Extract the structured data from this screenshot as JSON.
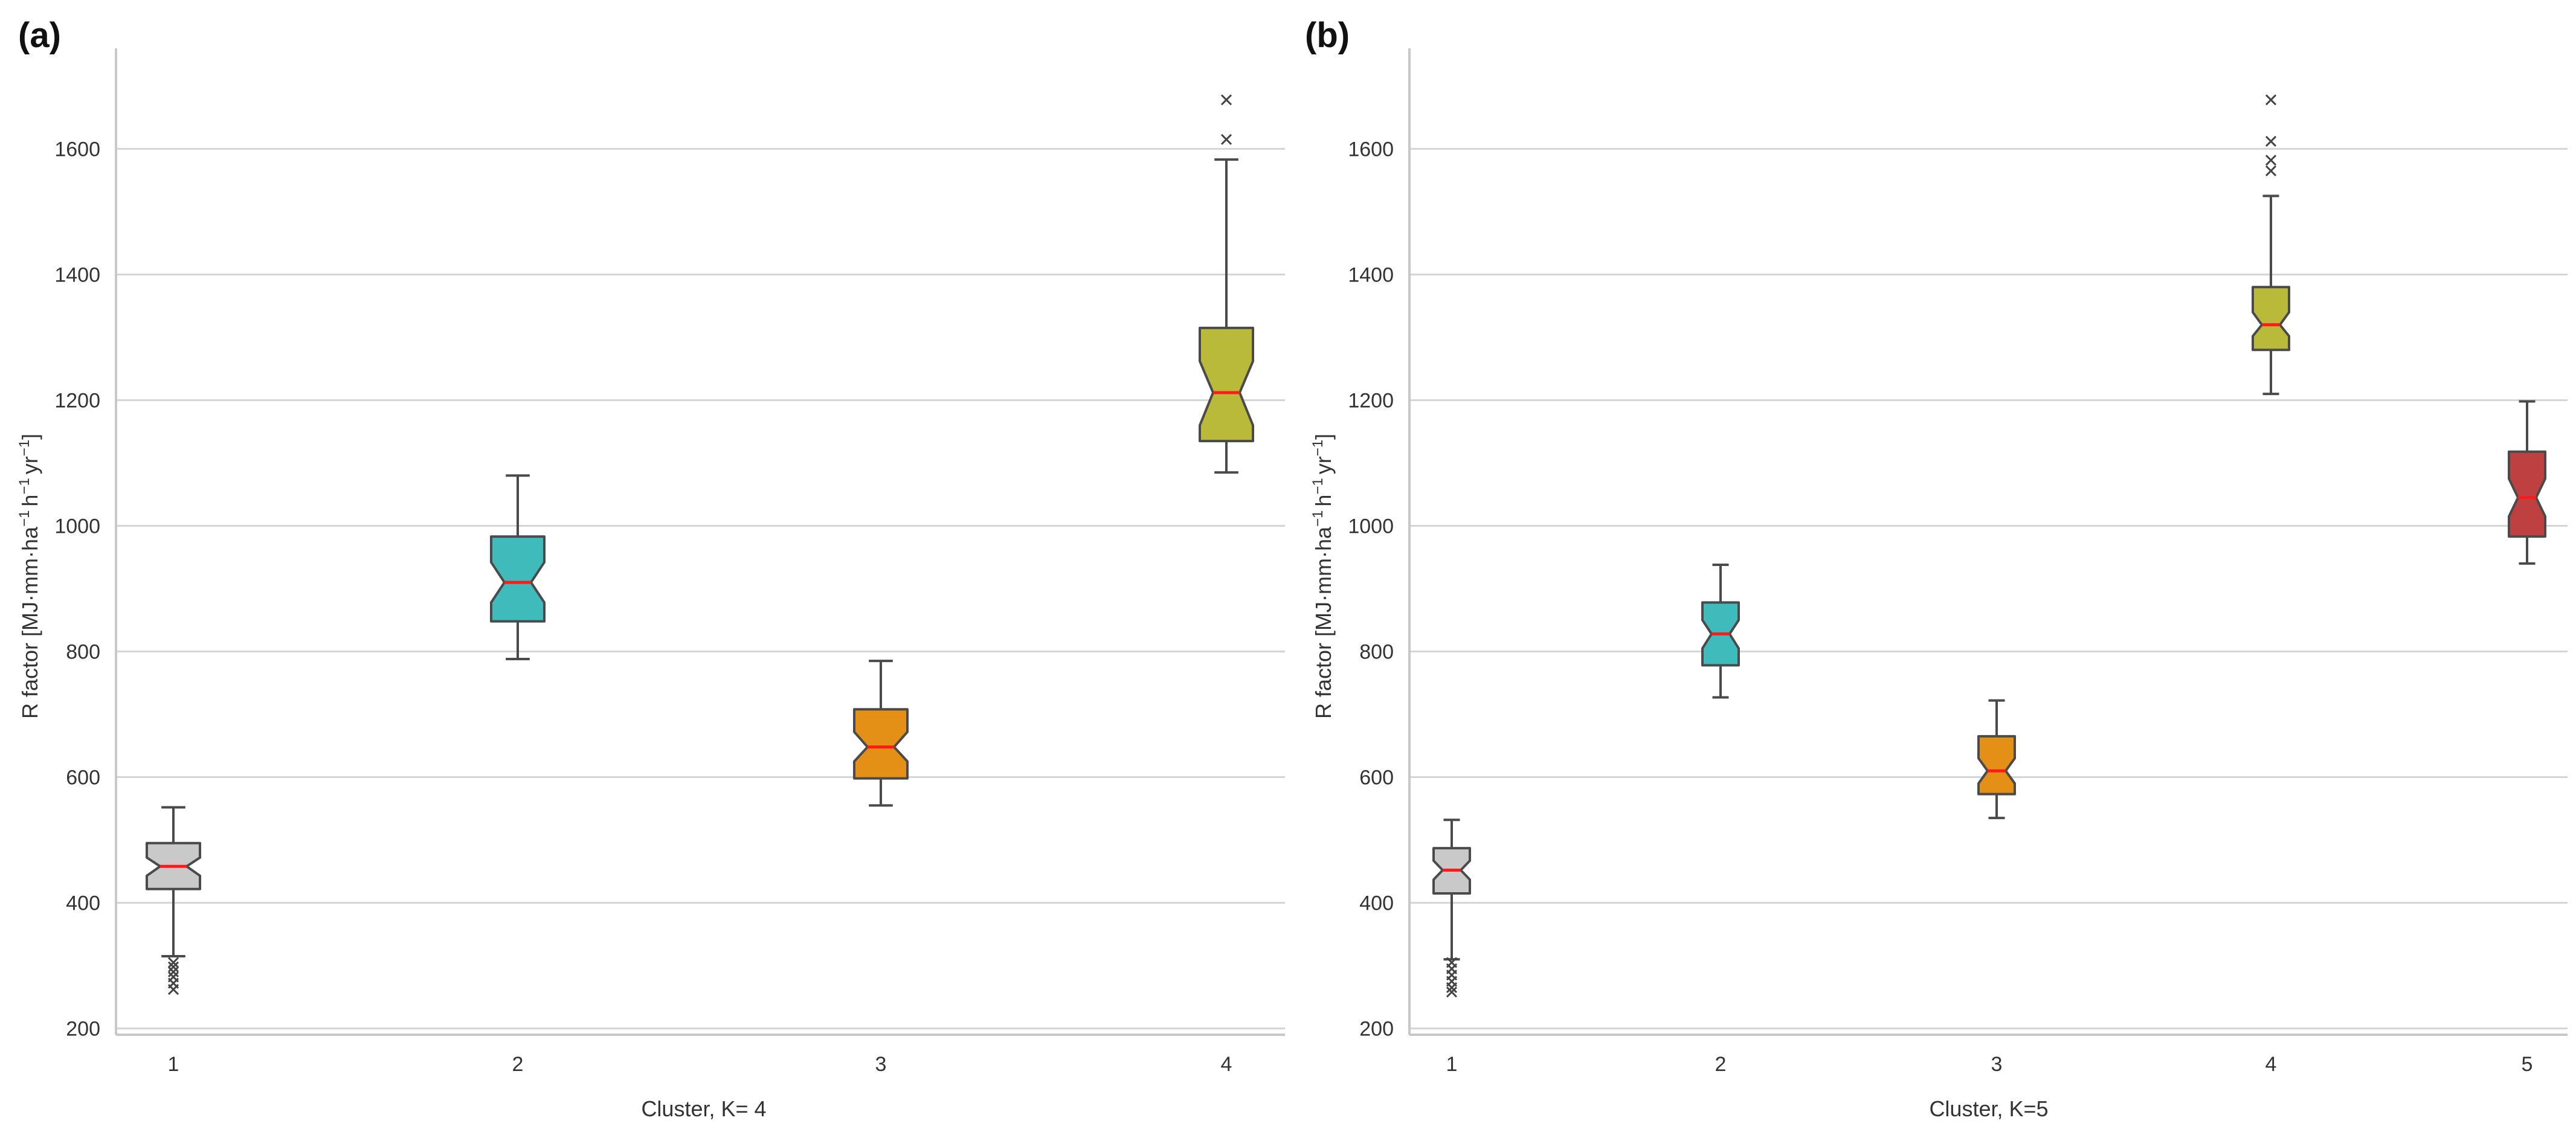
{
  "chart_data": [
    {
      "type": "box",
      "panel_label": "(a)",
      "title": "",
      "xlabel": "Cluster, K= 4",
      "ylabel_text": "R factor [MJ·mm·ha",
      "ylabel_sup": [
        "−1",
        "h",
        "−1",
        "yr",
        "−1",
        "]"
      ],
      "ylim": [
        190,
        1760
      ],
      "yticks": [
        200,
        400,
        600,
        800,
        1000,
        1200,
        1400,
        1600
      ],
      "categories": [
        "1",
        "2",
        "3",
        "4"
      ],
      "boxes": [
        {
          "cluster": "1",
          "color": "#c9c9c9",
          "whislo": 315,
          "q1": 422,
          "med": 458,
          "q3": 495,
          "whishi": 552,
          "notch_lo": 443,
          "notch_hi": 472,
          "fliers": [
            305,
            298,
            290,
            282,
            272,
            262
          ]
        },
        {
          "cluster": "2",
          "color": "#3fbbbb",
          "whislo": 788,
          "q1": 848,
          "med": 910,
          "q3": 983,
          "whishi": 1080,
          "notch_lo": 878,
          "notch_hi": 942,
          "fliers": []
        },
        {
          "cluster": "3",
          "color": "#e48f16",
          "whislo": 555,
          "q1": 598,
          "med": 648,
          "q3": 708,
          "whishi": 785,
          "notch_lo": 625,
          "notch_hi": 672,
          "fliers": []
        },
        {
          "cluster": "4",
          "color": "#b9b93a",
          "whislo": 1085,
          "q1": 1135,
          "med": 1212,
          "q3": 1315,
          "whishi": 1583,
          "notch_lo": 1160,
          "notch_hi": 1262,
          "fliers": [
            1615,
            1678
          ]
        }
      ]
    },
    {
      "type": "box",
      "panel_label": "(b)",
      "title": "",
      "xlabel": "Cluster, K=5",
      "ylabel_text": "R factor [MJ·mm·ha",
      "ylabel_sup": [
        "−1",
        "h",
        "−1",
        "yr",
        "−1",
        "]"
      ],
      "ylim": [
        190,
        1760
      ],
      "yticks": [
        200,
        400,
        600,
        800,
        1000,
        1200,
        1400,
        1600
      ],
      "categories": [
        "1",
        "2",
        "3",
        "4",
        "5"
      ],
      "boxes": [
        {
          "cluster": "1",
          "color": "#c9c9c9",
          "whislo": 310,
          "q1": 415,
          "med": 452,
          "q3": 487,
          "whishi": 532,
          "notch_lo": 437,
          "notch_hi": 467,
          "fliers": [
            305,
            295,
            285,
            275,
            265,
            258
          ]
        },
        {
          "cluster": "2",
          "color": "#3fbbbb",
          "whislo": 727,
          "q1": 778,
          "med": 828,
          "q3": 878,
          "whishi": 938,
          "notch_lo": 805,
          "notch_hi": 850,
          "fliers": []
        },
        {
          "cluster": "3",
          "color": "#e48f16",
          "whislo": 535,
          "q1": 573,
          "med": 610,
          "q3": 665,
          "whishi": 722,
          "notch_lo": 590,
          "notch_hi": 630,
          "fliers": []
        },
        {
          "cluster": "4",
          "color": "#b9b93a",
          "whislo": 1210,
          "q1": 1280,
          "med": 1320,
          "q3": 1380,
          "whishi": 1525,
          "notch_lo": 1302,
          "notch_hi": 1340,
          "fliers": [
            1565,
            1582,
            1612,
            1678
          ]
        },
        {
          "cluster": "5",
          "color": "#bf4040",
          "whislo": 940,
          "q1": 983,
          "med": 1045,
          "q3": 1118,
          "whishi": 1198,
          "notch_lo": 1015,
          "notch_hi": 1075,
          "fliers": []
        }
      ]
    }
  ]
}
